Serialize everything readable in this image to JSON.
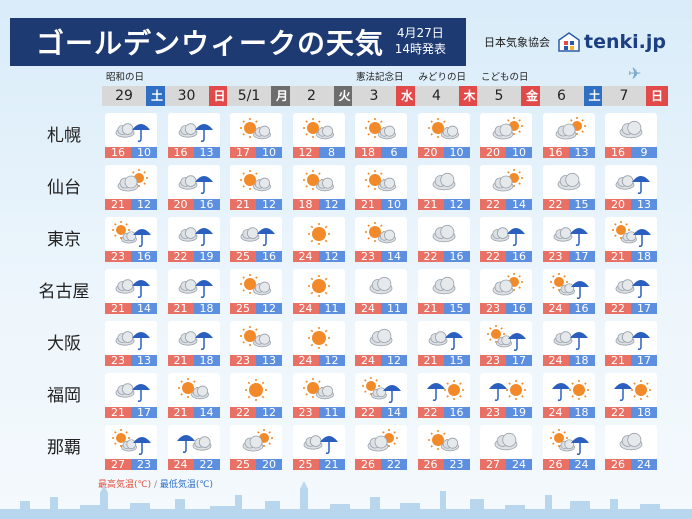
{
  "header": {
    "title": "ゴールデンウィークの天気",
    "date": "4月27日",
    "time": "14時発表",
    "source": "日本気象協会",
    "brand": "tenki.jp"
  },
  "colors": {
    "high": "#e97064",
    "low": "#5d8fe0",
    "navy": "#1e3a73"
  },
  "days": [
    {
      "date": "29",
      "dow": "土",
      "type": "sat",
      "holiday": "昭和の日"
    },
    {
      "date": "30",
      "dow": "日",
      "type": "sun",
      "holiday": ""
    },
    {
      "date": "5/1",
      "dow": "月",
      "type": "wk",
      "holiday": ""
    },
    {
      "date": "2",
      "dow": "火",
      "type": "wk",
      "holiday": ""
    },
    {
      "date": "3",
      "dow": "水",
      "type": "holi",
      "holiday": "憲法記念日"
    },
    {
      "date": "4",
      "dow": "木",
      "type": "holi",
      "holiday": "みどりの日"
    },
    {
      "date": "5",
      "dow": "金",
      "type": "holi",
      "holiday": "こどもの日"
    },
    {
      "date": "6",
      "dow": "土",
      "type": "sat",
      "holiday": ""
    },
    {
      "date": "7",
      "dow": "日",
      "type": "sun",
      "holiday": ""
    }
  ],
  "cities": [
    {
      "name": "札幌",
      "forecast": [
        {
          "icon": "cloud-rain",
          "hi": "16",
          "lo": "10"
        },
        {
          "icon": "cloud-rain",
          "hi": "16",
          "lo": "13"
        },
        {
          "icon": "sun-cloud",
          "hi": "17",
          "lo": "10"
        },
        {
          "icon": "sun-cloud",
          "hi": "12",
          "lo": "8"
        },
        {
          "icon": "sun-cloud",
          "hi": "18",
          "lo": "6"
        },
        {
          "icon": "sun-cloud",
          "hi": "20",
          "lo": "10"
        },
        {
          "icon": "cloud-sun",
          "hi": "20",
          "lo": "10"
        },
        {
          "icon": "cloud-sun",
          "hi": "16",
          "lo": "13"
        },
        {
          "icon": "cloud",
          "hi": "16",
          "lo": "9"
        }
      ]
    },
    {
      "name": "仙台",
      "forecast": [
        {
          "icon": "cloud-sun",
          "hi": "21",
          "lo": "12"
        },
        {
          "icon": "cloud-rain",
          "hi": "20",
          "lo": "16"
        },
        {
          "icon": "sun-cloud",
          "hi": "21",
          "lo": "12"
        },
        {
          "icon": "sun-cloud",
          "hi": "18",
          "lo": "12"
        },
        {
          "icon": "sun-cloud",
          "hi": "21",
          "lo": "10"
        },
        {
          "icon": "cloud",
          "hi": "21",
          "lo": "12"
        },
        {
          "icon": "cloud-sun",
          "hi": "22",
          "lo": "14"
        },
        {
          "icon": "cloud",
          "hi": "22",
          "lo": "15"
        },
        {
          "icon": "cloud-rain",
          "hi": "20",
          "lo": "13"
        }
      ]
    },
    {
      "name": "東京",
      "forecast": [
        {
          "icon": "sun-rain",
          "hi": "23",
          "lo": "16"
        },
        {
          "icon": "cloud-rain",
          "hi": "22",
          "lo": "19"
        },
        {
          "icon": "cloud-rain",
          "hi": "25",
          "lo": "16"
        },
        {
          "icon": "sun",
          "hi": "24",
          "lo": "12"
        },
        {
          "icon": "sun-cloud",
          "hi": "23",
          "lo": "14"
        },
        {
          "icon": "cloud",
          "hi": "22",
          "lo": "16"
        },
        {
          "icon": "cloud-rain",
          "hi": "22",
          "lo": "16"
        },
        {
          "icon": "cloud-rain",
          "hi": "23",
          "lo": "17"
        },
        {
          "icon": "sun-rain",
          "hi": "21",
          "lo": "18"
        }
      ]
    },
    {
      "name": "名古屋",
      "forecast": [
        {
          "icon": "cloud-rain",
          "hi": "21",
          "lo": "14"
        },
        {
          "icon": "cloud-rain",
          "hi": "21",
          "lo": "18"
        },
        {
          "icon": "sun-cloud",
          "hi": "25",
          "lo": "12"
        },
        {
          "icon": "sun",
          "hi": "24",
          "lo": "11"
        },
        {
          "icon": "cloud",
          "hi": "24",
          "lo": "11"
        },
        {
          "icon": "cloud",
          "hi": "21",
          "lo": "15"
        },
        {
          "icon": "cloud-sun",
          "hi": "23",
          "lo": "16"
        },
        {
          "icon": "sun-rain",
          "hi": "24",
          "lo": "16"
        },
        {
          "icon": "cloud-rain",
          "hi": "22",
          "lo": "17"
        }
      ]
    },
    {
      "name": "大阪",
      "forecast": [
        {
          "icon": "cloud-rain",
          "hi": "23",
          "lo": "13"
        },
        {
          "icon": "cloud-rain",
          "hi": "21",
          "lo": "18"
        },
        {
          "icon": "sun-cloud",
          "hi": "23",
          "lo": "13"
        },
        {
          "icon": "sun",
          "hi": "24",
          "lo": "12"
        },
        {
          "icon": "cloud",
          "hi": "24",
          "lo": "12"
        },
        {
          "icon": "cloud-rain",
          "hi": "21",
          "lo": "15"
        },
        {
          "icon": "sun-rain",
          "hi": "23",
          "lo": "17"
        },
        {
          "icon": "cloud-rain",
          "hi": "24",
          "lo": "18"
        },
        {
          "icon": "cloud-rain",
          "hi": "21",
          "lo": "17"
        }
      ]
    },
    {
      "name": "福岡",
      "forecast": [
        {
          "icon": "cloud-rain",
          "hi": "21",
          "lo": "17"
        },
        {
          "icon": "sun-cloud",
          "hi": "21",
          "lo": "14"
        },
        {
          "icon": "sun",
          "hi": "22",
          "lo": "12"
        },
        {
          "icon": "sun-cloud",
          "hi": "23",
          "lo": "11"
        },
        {
          "icon": "sun-rain",
          "hi": "22",
          "lo": "14"
        },
        {
          "icon": "rain-sun",
          "hi": "22",
          "lo": "16"
        },
        {
          "icon": "rain-sun",
          "hi": "23",
          "lo": "19"
        },
        {
          "icon": "rain-sun",
          "hi": "24",
          "lo": "18"
        },
        {
          "icon": "rain-sun",
          "hi": "22",
          "lo": "18"
        }
      ]
    },
    {
      "name": "那覇",
      "forecast": [
        {
          "icon": "sun-rain",
          "hi": "27",
          "lo": "23"
        },
        {
          "icon": "rain-cloud",
          "hi": "24",
          "lo": "22"
        },
        {
          "icon": "cloud-sun",
          "hi": "25",
          "lo": "20"
        },
        {
          "icon": "cloud-rain",
          "hi": "25",
          "lo": "21"
        },
        {
          "icon": "cloud-sun",
          "hi": "26",
          "lo": "22"
        },
        {
          "icon": "sun-cloud",
          "hi": "26",
          "lo": "23"
        },
        {
          "icon": "cloud",
          "hi": "27",
          "lo": "24"
        },
        {
          "icon": "sun-rain",
          "hi": "26",
          "lo": "24"
        },
        {
          "icon": "cloud",
          "hi": "26",
          "lo": "24"
        }
      ]
    }
  ],
  "footer": {
    "high_label": "最高気温(℃)",
    "sep": " / ",
    "low_label": "最低気温(℃)"
  }
}
